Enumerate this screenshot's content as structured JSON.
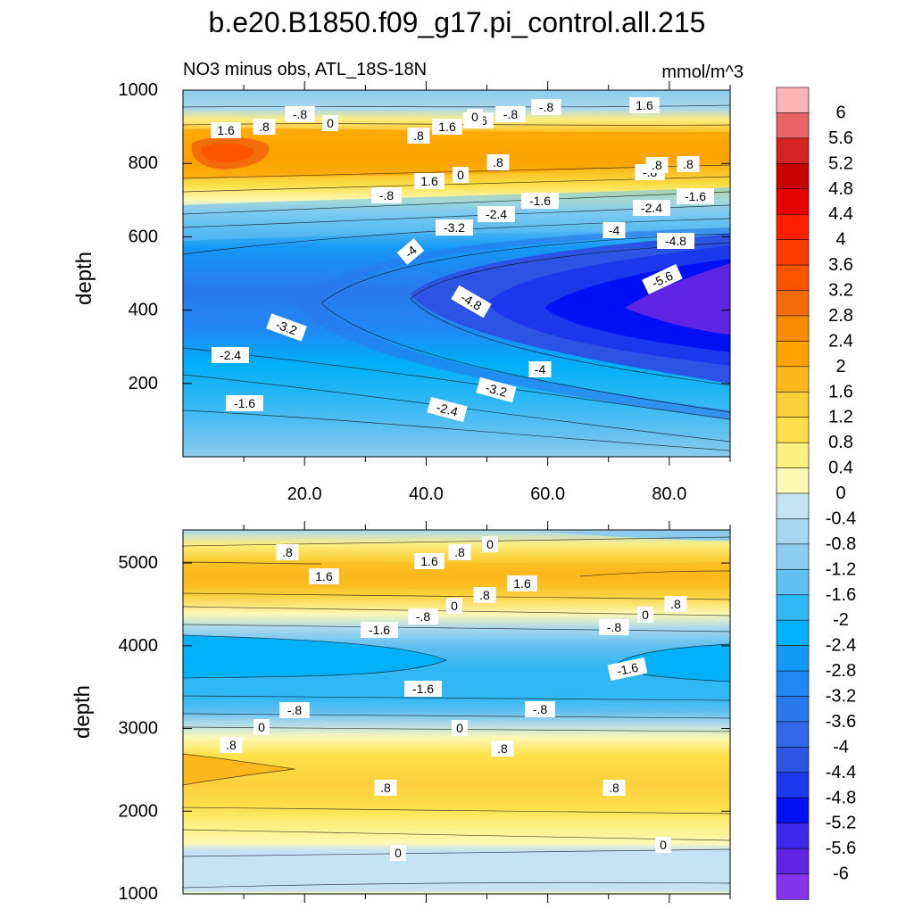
{
  "title": "b.e20.B1850.f09_g17.pi_control.all.215",
  "subtitle_left": "NO3 minus obs, ATL_18S-18N",
  "subtitle_right": "mmol/m^3",
  "chart_data": [
    {
      "type": "heatmap",
      "panel": "upper",
      "ylabel": "depth",
      "ylim": [
        1000,
        0
      ],
      "xlim": [
        0,
        90
      ],
      "yticks": [
        "200",
        "400",
        "600",
        "800",
        "1000"
      ],
      "xticks": [
        "20.0",
        "40.0",
        "60.0",
        "80.0"
      ],
      "contour_labels": [
        ".8",
        "-.8",
        "0",
        "1.6",
        "-.8",
        "-.8",
        "-.8",
        "1.6",
        ".8",
        "1.6",
        ".8",
        "0",
        "1.6",
        ".8",
        "-.8",
        "-1.6",
        "-2.4",
        "-3.2",
        "-2.4",
        "-1.6",
        "-4",
        "-4.8",
        "-4",
        "-5.6",
        "-4.8",
        "-3.2",
        "-2.4",
        "-1.6",
        "-4",
        "-3.2",
        "-2.4",
        "1.6",
        "0",
        ".8"
      ]
    },
    {
      "type": "heatmap",
      "panel": "lower",
      "ylabel": "depth",
      "ylim": [
        5400,
        1000
      ],
      "xlim": [
        0,
        90
      ],
      "yticks": [
        "1000",
        "2000",
        "3000",
        "4000",
        "5000"
      ],
      "contour_labels": [
        ".8",
        ".8",
        "0",
        "1.6",
        "1.6",
        "1.6",
        ".8",
        "0",
        "-.8",
        "-1.6",
        "-.8",
        "0",
        ".8",
        "-1.6",
        "-1.6",
        "-.8",
        "-.8",
        "0",
        "0",
        ".8",
        ".8",
        ".8",
        ".8",
        "0",
        "0"
      ]
    }
  ],
  "colorbar": {
    "labels": [
      "6",
      "5.6",
      "5.2",
      "4.8",
      "4.4",
      "4",
      "3.6",
      "3.2",
      "2.8",
      "2.4",
      "2",
      "1.6",
      "1.2",
      "0.8",
      "0.4",
      "0",
      "-0.4",
      "-0.8",
      "-1.2",
      "-1.6",
      "-2",
      "-2.4",
      "-2.8",
      "-3.2",
      "-3.6",
      "-4",
      "-4.4",
      "-4.8",
      "-5.2",
      "-5.6",
      "-6"
    ],
    "colors": [
      "#fcb4b4",
      "#e86464",
      "#d42222",
      "#c80000",
      "#e80000",
      "#ff1e00",
      "#ff3c00",
      "#ff5500",
      "#f46b0a",
      "#f88c00",
      "#fca300",
      "#fcb81c",
      "#fcd03a",
      "#fde04a",
      "#fdef80",
      "#fdf9b4",
      "#c4e4f4",
      "#a8d8f0",
      "#8cccec",
      "#60c0f0",
      "#30b8f4",
      "#00b0f8",
      "#1498f6",
      "#2088f4",
      "#2a78ec",
      "#3068e8",
      "#2c54e4",
      "#1c38ec",
      "#0010f4",
      "#3c28ec",
      "#6024e4",
      "#8434ec"
    ]
  }
}
